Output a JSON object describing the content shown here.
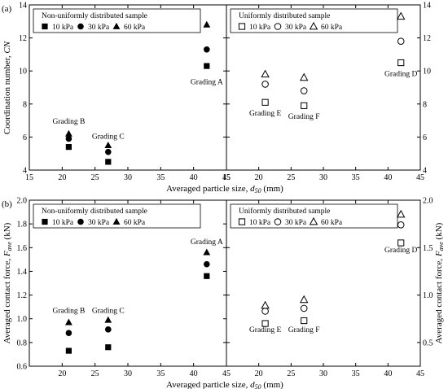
{
  "chart_data": [
    {
      "type": "scatter",
      "panel": "(a)",
      "xlabel": "Averaged particle size, d50 (mm)",
      "xlabel_prefix": "Averaged particle size, ",
      "xlabel_var": "d",
      "xlabel_sub": "50",
      "xlabel_suffix": " (mm)",
      "ylabel_left": "Coordination number, CN",
      "ylabel_left_prefix": "Coordination number, ",
      "ylabel_left_var": "CN",
      "ylabel_right": "",
      "xlim": [
        15,
        45
      ],
      "ylim": [
        4,
        14
      ],
      "xticks": [
        15,
        20,
        25,
        30,
        35,
        40,
        45
      ],
      "yticks_left": [
        4,
        6,
        8,
        10,
        12,
        14
      ],
      "yticks_right": [
        4,
        6,
        8,
        10,
        12,
        14
      ],
      "subplots": [
        {
          "name": "left",
          "xlim": [
            15,
            45
          ],
          "legend": {
            "title": "Non-uniformly distributed sample",
            "placement": "top-left",
            "entries": [
              "10 kPa",
              "30 kPa",
              "60 kPa"
            ]
          },
          "series": [
            {
              "name": "10 kPa",
              "marker": "square-filled",
              "x": [
                21,
                27,
                42
              ],
              "y": [
                5.4,
                4.5,
                10.3
              ]
            },
            {
              "name": "30 kPa",
              "marker": "circle-filled",
              "x": [
                21,
                27,
                42
              ],
              "y": [
                5.9,
                5.1,
                11.3
              ]
            },
            {
              "name": "60 kPa",
              "marker": "triangle-filled",
              "x": [
                21,
                27,
                42
              ],
              "y": [
                6.2,
                5.5,
                12.8
              ]
            }
          ],
          "annotations": [
            {
              "text": "Grading B",
              "x": 21,
              "y": 6.8
            },
            {
              "text": "Grading C",
              "x": 27,
              "y": 5.9
            },
            {
              "text": "Grading A",
              "x": 42,
              "y": 9.2
            }
          ]
        },
        {
          "name": "right",
          "xlim": [
            15,
            45
          ],
          "legend": {
            "title": "Uniformly distributed sample",
            "placement": "top-left",
            "entries": [
              "10 kPa",
              "30 kPa",
              "60 kPa"
            ]
          },
          "series": [
            {
              "name": "10 kPa",
              "marker": "square-open",
              "x": [
                21,
                27,
                42
              ],
              "y": [
                8.1,
                7.9,
                10.5
              ]
            },
            {
              "name": "30 kPa",
              "marker": "circle-open",
              "x": [
                21,
                27,
                42
              ],
              "y": [
                9.2,
                8.8,
                11.8
              ]
            },
            {
              "name": "60 kPa",
              "marker": "triangle-open",
              "x": [
                21,
                27,
                42
              ],
              "y": [
                9.8,
                9.6,
                13.3
              ]
            }
          ],
          "annotations": [
            {
              "text": "Grading E",
              "x": 21,
              "y": 7.3
            },
            {
              "text": "Grading F",
              "x": 27,
              "y": 7.1
            },
            {
              "text": "Grading D",
              "x": 42,
              "y": 9.7
            }
          ]
        }
      ]
    },
    {
      "type": "scatter",
      "panel": "(b)",
      "xlabel": "Averaged particle size, d50 (mm)",
      "xlabel_prefix": "Averaged particle size, ",
      "xlabel_var": "d",
      "xlabel_sub": "50",
      "xlabel_suffix": " (mm)",
      "ylabel_left": "Averaged contact force, Fave (kN)",
      "ylabel_right": "Averaged contact force, Fave (kN)",
      "ylabel_prefix": "Averaged contact force, ",
      "ylabel_var": "F",
      "ylabel_sub": "ave",
      "ylabel_suffix": " (kN)",
      "ylim_left": [
        0.6,
        2.0
      ],
      "yticks_left": [
        0.6,
        0.8,
        1.0,
        1.2,
        1.4,
        1.6,
        1.8,
        2.0
      ],
      "ylim_right": [
        0.25,
        2.0
      ],
      "yticks_right": [
        0.5,
        1.0,
        1.5,
        2.0
      ],
      "subplots": [
        {
          "name": "left",
          "xlim": [
            15,
            45
          ],
          "xticks": [
            20,
            25,
            30,
            35,
            40,
            45
          ],
          "legend": {
            "title": "Non-uniformly distributed sample",
            "placement": "top-left",
            "entries": [
              "10 kPa",
              "30 kPa",
              "60 kPa"
            ]
          },
          "series": [
            {
              "name": "10 kPa",
              "marker": "square-filled",
              "x": [
                21,
                27,
                42
              ],
              "y": [
                0.73,
                0.76,
                1.36
              ]
            },
            {
              "name": "30 kPa",
              "marker": "circle-filled",
              "x": [
                21,
                27,
                42
              ],
              "y": [
                0.88,
                0.91,
                1.46
              ]
            },
            {
              "name": "60 kPa",
              "marker": "triangle-filled",
              "x": [
                21,
                27,
                42
              ],
              "y": [
                0.97,
                0.99,
                1.56
              ]
            }
          ],
          "annotations": [
            {
              "text": "Grading B",
              "x": 21,
              "y": 1.05
            },
            {
              "text": "Grading C",
              "x": 27,
              "y": 1.05
            },
            {
              "text": "Grading A",
              "x": 42,
              "y": 1.63
            }
          ]
        },
        {
          "name": "right",
          "xlim": [
            15,
            45
          ],
          "xticks": [
            20,
            25,
            30,
            35,
            40,
            45
          ],
          "legend": {
            "title": "Uniformly distributed sample",
            "placement": "top-left",
            "entries": [
              "10 kPa",
              "30 kPa",
              "60 kPa"
            ]
          },
          "series": [
            {
              "name": "10 kPa",
              "marker": "square-open",
              "x": [
                21,
                27,
                42
              ],
              "y": [
                0.7,
                0.73,
                1.55
              ]
            },
            {
              "name": "30 kPa",
              "marker": "circle-open",
              "x": [
                21,
                27,
                42
              ],
              "y": [
                0.83,
                0.86,
                1.74
              ]
            },
            {
              "name": "60 kPa",
              "marker": "triangle-open",
              "x": [
                21,
                27,
                42
              ],
              "y": [
                0.89,
                0.95,
                1.85
              ]
            }
          ],
          "annotations": [
            {
              "text": "Grading E",
              "x": 21,
              "y": 0.61
            },
            {
              "text": "Grading F",
              "x": 27,
              "y": 0.61
            },
            {
              "text": "Grading D",
              "x": 42,
              "y": 1.45
            }
          ]
        }
      ]
    }
  ]
}
